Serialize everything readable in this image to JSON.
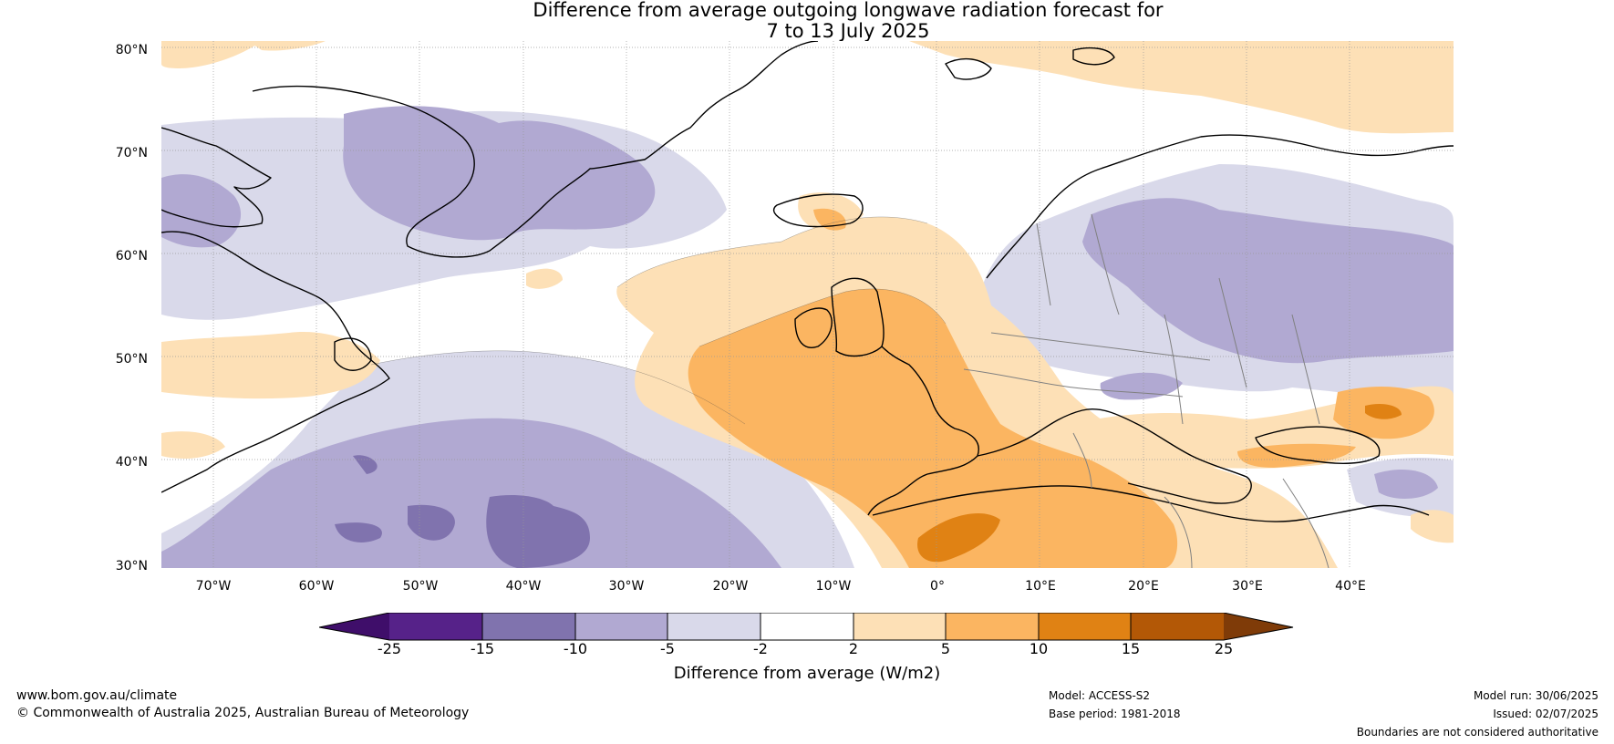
{
  "title": {
    "line1": "Difference from average outgoing longwave radiation forecast for",
    "line2": "7 to 13 July 2025"
  },
  "map": {
    "latitude_labels": [
      "80°N",
      "70°N",
      "60°N",
      "50°N",
      "40°N",
      "30°N"
    ],
    "longitude_labels": [
      "70°W",
      "60°W",
      "50°W",
      "40°W",
      "30°W",
      "20°W",
      "10°W",
      "0°",
      "10°E",
      "20°E",
      "30°E",
      "40°E"
    ],
    "extent": {
      "lon": [
        -75,
        50
      ],
      "lat": [
        30,
        81
      ]
    },
    "colors": {
      "land_outline": "#000000",
      "borders": "#808080",
      "gridlines": "#999999"
    }
  },
  "colorbar": {
    "label": "Difference from average (W/m2)",
    "ticks": [
      "-25",
      "-15",
      "-10",
      "-5",
      "-2",
      "2",
      "5",
      "10",
      "15",
      "25"
    ],
    "colors": [
      "#3f0e6a",
      "#562289",
      "#8073ae",
      "#b1a9d2",
      "#d9d9ea",
      "#ffffff",
      "#fde0b6",
      "#fbb561",
      "#e08214",
      "#b35806",
      "#7f3b08"
    ]
  },
  "footer": {
    "url": "www.bom.gov.au/climate",
    "copyright": "© Commonwealth of Australia 2025, Australian Bureau of Meteorology",
    "model": "Model: ACCESS-S2",
    "base_period": "Base period: 1981-2018",
    "model_run": "Model run: 30/06/2025",
    "issued": "Issued: 02/07/2025",
    "disclaimer": "Boundaries are not considered authoritative"
  }
}
